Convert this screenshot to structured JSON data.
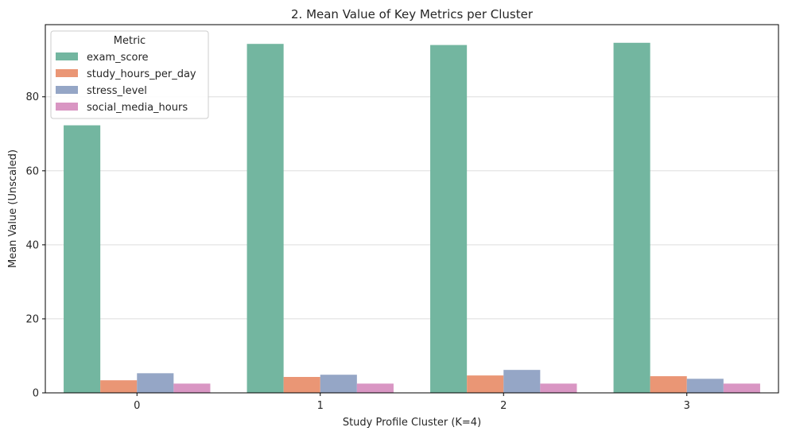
{
  "chart_data": {
    "type": "bar",
    "title": "2. Mean Value of Key Metrics per Cluster",
    "xlabel": "Study Profile Cluster (K=4)",
    "ylabel": "Mean Value (Unscaled)",
    "categories": [
      "0",
      "1",
      "2",
      "3"
    ],
    "ylim": [
      0,
      99.5
    ],
    "yticks": [
      0,
      20,
      40,
      60,
      80
    ],
    "grid": "horizontal",
    "legend": {
      "title": "Metric",
      "placement": "top-left"
    },
    "series": [
      {
        "name": "exam_score",
        "color": "#73b6a0",
        "values": [
          72.3,
          94.3,
          94.0,
          94.6
        ]
      },
      {
        "name": "study_hours_per_day",
        "color": "#ea9675",
        "values": [
          3.4,
          4.3,
          4.7,
          4.5
        ]
      },
      {
        "name": "stress_level",
        "color": "#95a6c6",
        "values": [
          5.3,
          4.9,
          6.2,
          3.8
        ]
      },
      {
        "name": "social_media_hours",
        "color": "#d996c3",
        "values": [
          2.5,
          2.5,
          2.5,
          2.5
        ]
      }
    ]
  }
}
